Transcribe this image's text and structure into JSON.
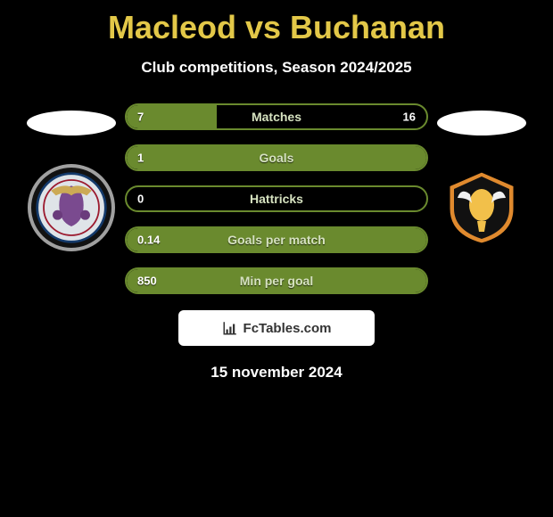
{
  "header": {
    "title": "Macleod vs Buchanan",
    "subtitle": "Club competitions, Season 2024/2025"
  },
  "stats": {
    "rows": [
      {
        "left": "7",
        "label": "Matches",
        "right": "16",
        "fillPct": 30
      },
      {
        "left": "1",
        "label": "Goals",
        "right": "",
        "fillPct": 100
      },
      {
        "left": "0",
        "label": "Hattricks",
        "right": "",
        "fillPct": 0
      },
      {
        "left": "0.14",
        "label": "Goals per match",
        "right": "",
        "fillPct": 100
      },
      {
        "left": "850",
        "label": "Min per goal",
        "right": "",
        "fillPct": 100
      }
    ],
    "colors": {
      "border": "#6a8a2e",
      "fill": "#6a8a2e",
      "label": "#d6e2c0",
      "value": "#ffffff"
    }
  },
  "brand": {
    "text": "FcTables.com"
  },
  "date": "15 november 2024",
  "theme": {
    "bg": "#000000",
    "title": "#e3c848",
    "subtitle": "#ffffff"
  }
}
